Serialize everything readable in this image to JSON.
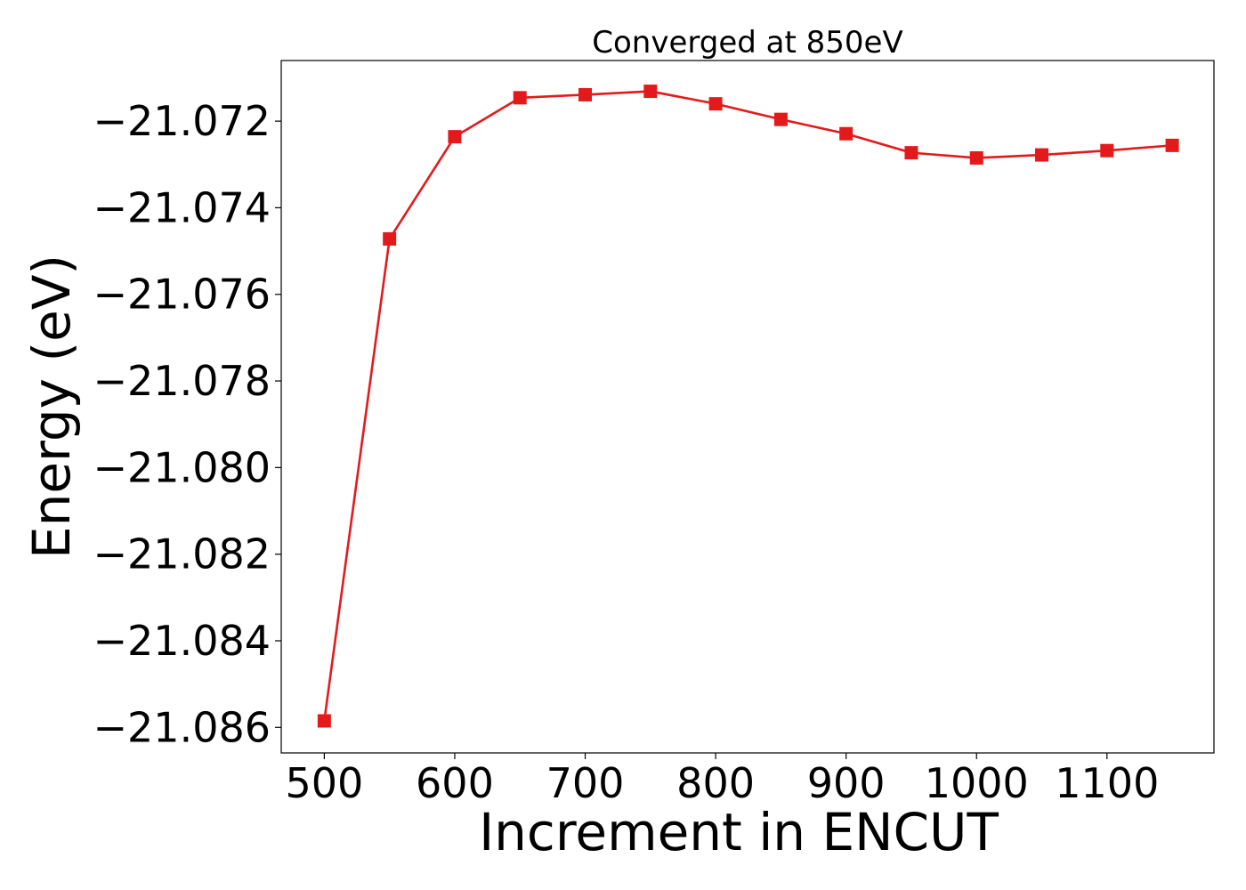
{
  "chart_data": {
    "type": "line",
    "title": "Converged at 850eV",
    "xlabel": "Increment in ENCUT",
    "ylabel": "Energy (eV)",
    "x": [
      500,
      550,
      600,
      650,
      700,
      750,
      800,
      850,
      900,
      950,
      1000,
      1050,
      1100,
      1150
    ],
    "series": [
      {
        "values": [
          -21.08585,
          -21.07472,
          -21.07236,
          -21.07146,
          -21.07139,
          -21.07131,
          -21.0716,
          -21.07196,
          -21.07229,
          -21.07273,
          -21.07285,
          -21.07278,
          -21.07268,
          -21.07256
        ],
        "color": "#e31a1c",
        "marker": "square"
      }
    ],
    "xlim": [
      467,
      1182
    ],
    "ylim": [
      -21.08659,
      -21.0706
    ],
    "xticks": [
      500,
      600,
      700,
      800,
      900,
      1000,
      1100
    ],
    "xtick_labels": [
      "500",
      "600",
      "700",
      "800",
      "900",
      "1000",
      "1100"
    ],
    "yticks": [
      -21.072,
      -21.074,
      -21.076,
      -21.078,
      -21.08,
      -21.082,
      -21.084,
      -21.086
    ],
    "ytick_labels": [
      "−21.072",
      "−21.074",
      "−21.076",
      "−21.078",
      "−21.080",
      "−21.082",
      "−21.084",
      "−21.086"
    ],
    "grid": false,
    "legend": "none"
  }
}
